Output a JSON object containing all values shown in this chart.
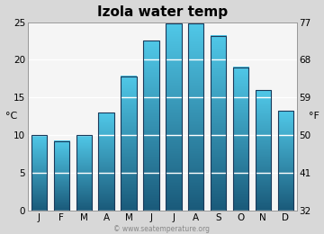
{
  "title": "Izola water temp",
  "months": [
    "J",
    "F",
    "M",
    "A",
    "M",
    "J",
    "J",
    "A",
    "S",
    "O",
    "N",
    "D"
  ],
  "values_c": [
    10.0,
    9.2,
    10.0,
    13.0,
    17.8,
    22.5,
    24.8,
    24.8,
    23.2,
    19.0,
    16.0,
    13.2
  ],
  "ylim_c": [
    0,
    25
  ],
  "yticks_c": [
    0,
    5,
    10,
    15,
    20,
    25
  ],
  "yticks_f": [
    32,
    41,
    50,
    59,
    68,
    77
  ],
  "ylabel_left": "°C",
  "ylabel_right": "°F",
  "bar_color_top": "#50c8e8",
  "bar_color_bottom": "#1a5a7a",
  "bg_color": "#d8d8d8",
  "plot_bg_color_top": "#e8e8e8",
  "plot_bg_color_bottom": "#f5f5f5",
  "title_fontsize": 11,
  "axis_fontsize": 7.5,
  "label_fontsize": 8,
  "watermark": "© www.seatemperature.org"
}
